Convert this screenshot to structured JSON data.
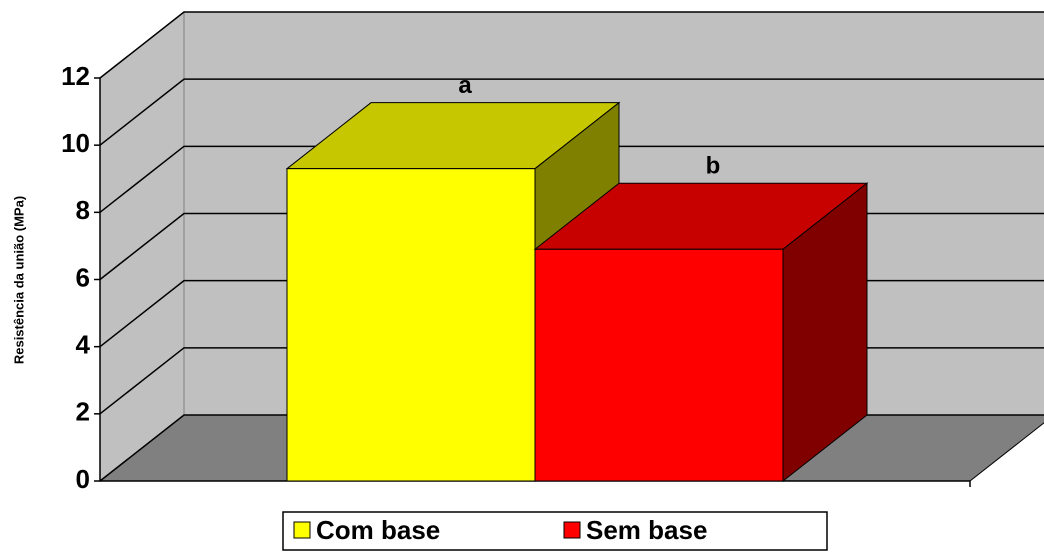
{
  "chart_data": {
    "type": "bar3d",
    "y_label": "Resistência da união (MPa)",
    "categories": [
      null
    ],
    "series": [
      {
        "name": "Com base",
        "color": "#ffff00",
        "values": [
          9.3
        ]
      },
      {
        "name": "Sem base",
        "color": "#ff0000",
        "values": [
          6.9
        ]
      }
    ],
    "annotations": [
      "a",
      "b"
    ],
    "ylim": [
      0,
      12
    ],
    "yticks": [
      0,
      2,
      4,
      6,
      8,
      10,
      12
    ],
    "grid": true,
    "legend": "bottom"
  }
}
